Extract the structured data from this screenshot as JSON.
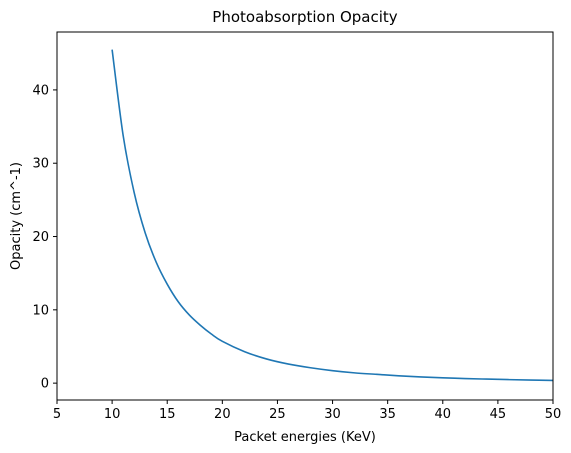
{
  "chart_data": {
    "type": "line",
    "title": "Photoabsorption Opacity",
    "xlabel": "Packet energies (KeV)",
    "ylabel": "Opacity (cm^-1)",
    "xlim": [
      5,
      50
    ],
    "ylim": [
      -2.3,
      47.9
    ],
    "xticks": [
      5,
      10,
      15,
      20,
      25,
      30,
      35,
      40,
      45,
      50
    ],
    "yticks": [
      0,
      10,
      20,
      30,
      40
    ],
    "grid": false,
    "series": [
      {
        "color": "#1f77b4",
        "x": [
          10,
          11,
          12,
          13,
          14,
          15,
          16,
          17,
          18,
          19,
          20,
          22,
          24,
          26,
          28,
          30,
          32,
          34,
          36,
          38,
          40,
          42,
          44,
          46,
          48,
          50
        ],
        "y": [
          45.5,
          33.8,
          26.0,
          20.5,
          16.5,
          13.5,
          11.1,
          9.3,
          7.9,
          6.7,
          5.7,
          4.3,
          3.3,
          2.6,
          2.1,
          1.7,
          1.4,
          1.2,
          1.0,
          0.85,
          0.73,
          0.63,
          0.55,
          0.48,
          0.42,
          0.37
        ]
      }
    ]
  }
}
